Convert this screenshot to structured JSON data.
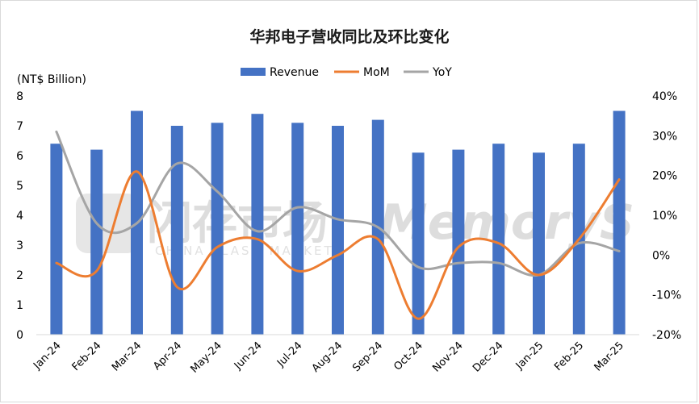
{
  "chart_data": {
    "type": "bar",
    "title": "华邦电子营收同比及环比变化",
    "y_unit_label": "(NT$ Billion)",
    "categories": [
      "Jan-24",
      "Feb-24",
      "Mar-24",
      "Apr-24",
      "May-24",
      "Jun-24",
      "Jul-24",
      "Aug-24",
      "Sep-24",
      "Oct-24",
      "Nov-24",
      "Dec-24",
      "Jan-25",
      "Feb-25",
      "Mar-25"
    ],
    "series": [
      {
        "name": "Revenue",
        "type": "bar",
        "axis": "left",
        "color": "#4472C4",
        "values": [
          6.4,
          6.2,
          7.5,
          7.0,
          7.1,
          7.4,
          7.1,
          7.0,
          7.2,
          6.1,
          6.2,
          6.4,
          6.1,
          6.4,
          7.5
        ]
      },
      {
        "name": "MoM",
        "type": "line",
        "axis": "right",
        "color": "#ED7D31",
        "unit": "%",
        "values": [
          -2,
          -4,
          21,
          -8,
          2,
          4,
          -4,
          0,
          4,
          -16,
          2,
          3,
          -5,
          4,
          19
        ]
      },
      {
        "name": "YoY",
        "type": "line",
        "axis": "right",
        "color": "#A5A5A5",
        "unit": "%",
        "values": [
          31,
          8,
          8,
          23,
          16,
          6,
          12,
          9,
          7,
          -3,
          -2,
          -2,
          -5,
          3,
          1
        ]
      }
    ],
    "y_left": {
      "min": 0,
      "max": 8,
      "ticks": [
        "0",
        "1",
        "2",
        "3",
        "4",
        "5",
        "6",
        "7",
        "8"
      ]
    },
    "y_right": {
      "min": -20,
      "max": 40,
      "ticks": [
        "-20%",
        "-10%",
        "0%",
        "10%",
        "20%",
        "30%",
        "40%"
      ]
    },
    "legend_position": "top",
    "grid": false
  },
  "watermark": {
    "cn": "闪存市场",
    "en": "CHINA FLASH MARKET",
    "brand": "MemoryS"
  }
}
